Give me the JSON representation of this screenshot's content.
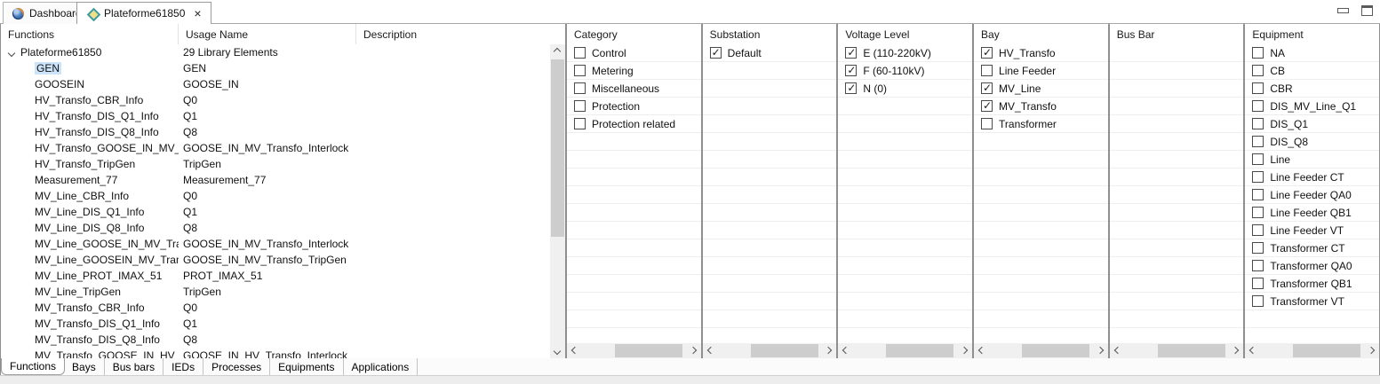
{
  "window": {
    "tabs": [
      {
        "label": "Dashboard",
        "active": false
      },
      {
        "label": "Plateforme61850",
        "active": true,
        "close_label": "×"
      }
    ]
  },
  "function_table": {
    "columns": [
      "Functions",
      "Usage Name",
      "Description"
    ],
    "rows": [
      {
        "name": "Plateforme61850",
        "usage": "29 Library Elements",
        "root": true
      },
      {
        "name": "GEN",
        "usage": "GEN",
        "selected": true
      },
      {
        "name": "GOOSEIN",
        "usage": "GOOSE_IN"
      },
      {
        "name": "HV_Transfo_CBR_Info",
        "usage": "Q0"
      },
      {
        "name": "HV_Transfo_DIS_Q1_Info",
        "usage": "Q1"
      },
      {
        "name": "HV_Transfo_DIS_Q8_Info",
        "usage": "Q8"
      },
      {
        "name": "HV_Transfo_GOOSE_IN_MV_Tra",
        "usage": "GOOSE_IN_MV_Transfo_Interlock"
      },
      {
        "name": "HV_Transfo_TripGen",
        "usage": "TripGen"
      },
      {
        "name": "Measurement_77",
        "usage": "Measurement_77"
      },
      {
        "name": "MV_Line_CBR_Info",
        "usage": "Q0"
      },
      {
        "name": "MV_Line_DIS_Q1_Info",
        "usage": "Q1"
      },
      {
        "name": "MV_Line_DIS_Q8_Info",
        "usage": "Q8"
      },
      {
        "name": "MV_Line_GOOSE_IN_MV_Transf",
        "usage": "GOOSE_IN_MV_Transfo_Interlock"
      },
      {
        "name": "MV_Line_GOOSEIN_MV_Transfc",
        "usage": "GOOSE_IN_MV_Transfo_TripGen"
      },
      {
        "name": "MV_Line_PROT_IMAX_51",
        "usage": "PROT_IMAX_51"
      },
      {
        "name": "MV_Line_TripGen",
        "usage": "TripGen"
      },
      {
        "name": "MV_Transfo_CBR_Info",
        "usage": "Q0"
      },
      {
        "name": "MV_Transfo_DIS_Q1_Info",
        "usage": "Q1"
      },
      {
        "name": "MV_Transfo_DIS_Q8_Info",
        "usage": "Q8"
      },
      {
        "name": "MV_Transfo_GOOSE_IN_HV_Tra",
        "usage": "GOOSE_IN_HV_Transfo_Interlock"
      }
    ]
  },
  "filter_panels": [
    {
      "title": "Category",
      "items": [
        {
          "label": "Control",
          "checked": false
        },
        {
          "label": "Metering",
          "checked": false
        },
        {
          "label": "Miscellaneous",
          "checked": false
        },
        {
          "label": "Protection",
          "checked": false
        },
        {
          "label": "Protection related",
          "checked": false
        }
      ]
    },
    {
      "title": "Substation",
      "items": [
        {
          "label": "Default",
          "checked": true
        }
      ]
    },
    {
      "title": "Voltage Level",
      "items": [
        {
          "label": "E (110-220kV)",
          "checked": true
        },
        {
          "label": "F (60-110kV)",
          "checked": true
        },
        {
          "label": "N (0)",
          "checked": true
        }
      ]
    },
    {
      "title": "Bay",
      "items": [
        {
          "label": "HV_Transfo",
          "checked": true
        },
        {
          "label": "Line Feeder",
          "checked": false
        },
        {
          "label": "MV_Line",
          "checked": true
        },
        {
          "label": "MV_Transfo",
          "checked": true
        },
        {
          "label": "Transformer",
          "checked": false
        }
      ]
    },
    {
      "title": "Bus Bar",
      "items": []
    },
    {
      "title": "Equipment",
      "items": [
        {
          "label": "NA",
          "checked": false
        },
        {
          "label": "CB",
          "checked": false
        },
        {
          "label": "CBR",
          "checked": false
        },
        {
          "label": "DIS_MV_Line_Q1",
          "checked": false
        },
        {
          "label": "DIS_Q1",
          "checked": false
        },
        {
          "label": "DIS_Q8",
          "checked": false
        },
        {
          "label": "Line",
          "checked": false
        },
        {
          "label": "Line Feeder CT",
          "checked": false
        },
        {
          "label": "Line Feeder QA0",
          "checked": false
        },
        {
          "label": "Line Feeder QB1",
          "checked": false
        },
        {
          "label": "Line Feeder VT",
          "checked": false
        },
        {
          "label": "Transformer CT",
          "checked": false
        },
        {
          "label": "Transformer QA0",
          "checked": false
        },
        {
          "label": "Transformer QB1",
          "checked": false
        },
        {
          "label": "Transformer VT",
          "checked": false
        }
      ]
    }
  ],
  "bottom_tabs": [
    {
      "label": "Functions",
      "selected": true
    },
    {
      "label": "Bays",
      "selected": false
    },
    {
      "label": "Bus bars",
      "selected": false
    },
    {
      "label": "IEDs",
      "selected": false
    },
    {
      "label": "Processes",
      "selected": false
    },
    {
      "label": "Equipments",
      "selected": false
    },
    {
      "label": "Applications",
      "selected": false
    }
  ]
}
